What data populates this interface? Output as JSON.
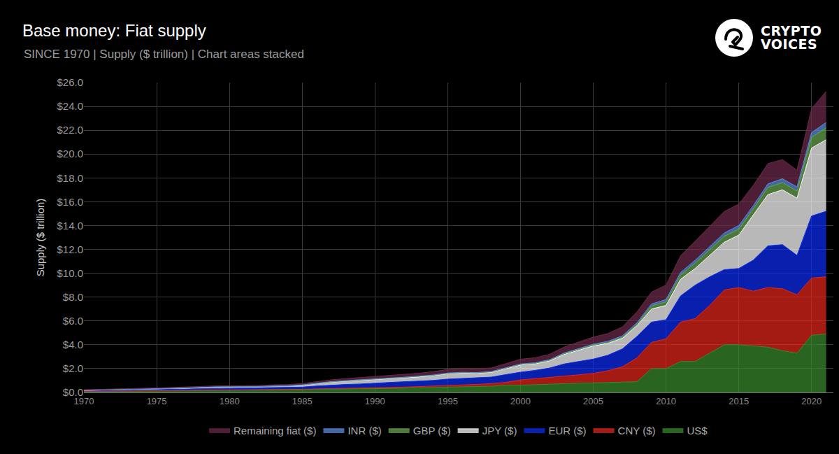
{
  "chart_data": {
    "type": "area",
    "title": "Base money: Fiat supply",
    "subtitle": "SINCE 1970 | Supply ($ trillion) | Chart areas stacked",
    "y_label": "Supply ($ trillion)",
    "logo": [
      "CRYPTO",
      "VOICES"
    ],
    "stacked": true,
    "grid": true,
    "legend": "bottom",
    "xlim": [
      1970,
      2021.5
    ],
    "xticks": [
      1970,
      1975,
      1980,
      1985,
      1990,
      1995,
      2000,
      2005,
      2010,
      2015,
      2020
    ],
    "ylim": [
      0,
      26
    ],
    "yticks": [
      {
        "value": 0,
        "label": "$0.0"
      },
      {
        "value": 2,
        "label": "$2.0"
      },
      {
        "value": 4,
        "label": "$4.0"
      },
      {
        "value": 6,
        "label": "$6.0"
      },
      {
        "value": 8,
        "label": "$8.0"
      },
      {
        "value": 10,
        "label": "$10.0"
      },
      {
        "value": 12,
        "label": "$12.0"
      },
      {
        "value": 14,
        "label": "$14.0"
      },
      {
        "value": 16,
        "label": "$16.0"
      },
      {
        "value": 18,
        "label": "$18.0"
      },
      {
        "value": 20,
        "label": "$20.0"
      },
      {
        "value": 22,
        "label": "$22.0"
      },
      {
        "value": 24,
        "label": "$24.0"
      },
      {
        "value": 26,
        "label": "$26.0"
      }
    ],
    "x": [
      1970,
      1971,
      1972,
      1973,
      1974,
      1975,
      1976,
      1977,
      1978,
      1979,
      1980,
      1981,
      1982,
      1983,
      1984,
      1985,
      1986,
      1987,
      1988,
      1989,
      1990,
      1991,
      1992,
      1993,
      1994,
      1995,
      1996,
      1997,
      1998,
      1999,
      2000,
      2001,
      2002,
      2003,
      2004,
      2005,
      2006,
      2007,
      2008,
      2009,
      2010,
      2011,
      2012,
      2013,
      2014,
      2015,
      2016,
      2017,
      2018,
      2019,
      2020,
      2021
    ],
    "series": [
      {
        "name": "US$",
        "color": "#3a8a2e",
        "values": [
          0.08,
          0.09,
          0.1,
          0.11,
          0.12,
          0.13,
          0.14,
          0.15,
          0.16,
          0.17,
          0.18,
          0.19,
          0.2,
          0.21,
          0.22,
          0.23,
          0.25,
          0.27,
          0.29,
          0.3,
          0.32,
          0.34,
          0.36,
          0.39,
          0.41,
          0.43,
          0.45,
          0.48,
          0.52,
          0.6,
          0.6,
          0.65,
          0.7,
          0.74,
          0.78,
          0.8,
          0.82,
          0.85,
          0.9,
          2.0,
          2.0,
          2.6,
          2.6,
          3.3,
          4.0,
          4.0,
          3.9,
          3.8,
          3.5,
          3.3,
          4.8,
          4.9
        ]
      },
      {
        "name": "CNY ($)",
        "color": "#e3261c",
        "values": [
          0.01,
          0.01,
          0.01,
          0.01,
          0.01,
          0.01,
          0.01,
          0.01,
          0.02,
          0.02,
          0.02,
          0.02,
          0.02,
          0.03,
          0.03,
          0.04,
          0.05,
          0.05,
          0.06,
          0.06,
          0.07,
          0.08,
          0.09,
          0.1,
          0.12,
          0.14,
          0.17,
          0.2,
          0.22,
          0.25,
          0.45,
          0.5,
          0.55,
          0.65,
          0.7,
          0.8,
          1.0,
          1.3,
          2.0,
          2.2,
          2.5,
          3.3,
          3.6,
          4.0,
          4.6,
          4.8,
          4.6,
          5.0,
          5.2,
          4.9,
          4.8,
          4.8
        ]
      },
      {
        "name": "EUR ($)",
        "color": "#0b2cf0",
        "values": [
          0.05,
          0.06,
          0.07,
          0.08,
          0.09,
          0.1,
          0.11,
          0.12,
          0.14,
          0.16,
          0.16,
          0.15,
          0.15,
          0.16,
          0.16,
          0.18,
          0.24,
          0.3,
          0.32,
          0.35,
          0.4,
          0.42,
          0.45,
          0.45,
          0.48,
          0.55,
          0.55,
          0.52,
          0.55,
          0.65,
          0.65,
          0.7,
          0.8,
          1.0,
          1.1,
          1.2,
          1.3,
          1.5,
          1.8,
          1.7,
          1.6,
          2.2,
          2.8,
          2.4,
          1.7,
          1.6,
          2.6,
          3.5,
          3.7,
          3.3,
          5.2,
          5.5
        ]
      },
      {
        "name": "JPY ($)",
        "color": "#ffffff",
        "values": [
          0.03,
          0.03,
          0.04,
          0.05,
          0.05,
          0.06,
          0.07,
          0.08,
          0.09,
          0.1,
          0.1,
          0.1,
          0.11,
          0.12,
          0.13,
          0.15,
          0.2,
          0.25,
          0.28,
          0.3,
          0.3,
          0.32,
          0.33,
          0.36,
          0.4,
          0.45,
          0.45,
          0.4,
          0.4,
          0.5,
          0.6,
          0.55,
          0.6,
          0.8,
          0.95,
          1.1,
          1.0,
          0.9,
          0.9,
          1.1,
          1.2,
          1.4,
          1.4,
          1.8,
          2.3,
          2.8,
          3.8,
          4.3,
          4.6,
          4.8,
          5.7,
          6.0
        ]
      },
      {
        "name": "GBP ($)",
        "color": "#6aa84f",
        "values": [
          0.01,
          0.01,
          0.01,
          0.01,
          0.01,
          0.01,
          0.01,
          0.01,
          0.01,
          0.01,
          0.01,
          0.01,
          0.01,
          0.01,
          0.01,
          0.02,
          0.02,
          0.02,
          0.02,
          0.02,
          0.03,
          0.03,
          0.03,
          0.03,
          0.03,
          0.03,
          0.04,
          0.04,
          0.04,
          0.04,
          0.05,
          0.05,
          0.05,
          0.06,
          0.06,
          0.07,
          0.07,
          0.08,
          0.1,
          0.25,
          0.3,
          0.35,
          0.45,
          0.5,
          0.5,
          0.5,
          0.5,
          0.6,
          0.6,
          0.6,
          0.9,
          1.0
        ]
      },
      {
        "name": "INR ($)",
        "color": "#5b8fe0",
        "values": [
          0.01,
          0.01,
          0.01,
          0.01,
          0.01,
          0.01,
          0.01,
          0.01,
          0.01,
          0.01,
          0.01,
          0.01,
          0.01,
          0.01,
          0.01,
          0.02,
          0.02,
          0.02,
          0.02,
          0.02,
          0.02,
          0.02,
          0.02,
          0.02,
          0.02,
          0.03,
          0.03,
          0.03,
          0.03,
          0.03,
          0.04,
          0.04,
          0.05,
          0.06,
          0.07,
          0.08,
          0.1,
          0.12,
          0.15,
          0.17,
          0.2,
          0.22,
          0.24,
          0.26,
          0.28,
          0.3,
          0.28,
          0.3,
          0.33,
          0.35,
          0.4,
          0.45
        ]
      },
      {
        "name": "Remaining fiat ($)",
        "color": "#6b2a4a",
        "values": [
          0.04,
          0.04,
          0.05,
          0.05,
          0.06,
          0.06,
          0.06,
          0.07,
          0.07,
          0.08,
          0.08,
          0.09,
          0.09,
          0.1,
          0.1,
          0.11,
          0.13,
          0.15,
          0.17,
          0.19,
          0.2,
          0.22,
          0.24,
          0.26,
          0.28,
          0.3,
          0.3,
          0.3,
          0.3,
          0.35,
          0.4,
          0.42,
          0.45,
          0.5,
          0.55,
          0.6,
          0.65,
          0.75,
          0.9,
          1.0,
          1.2,
          1.4,
          1.6,
          1.7,
          1.8,
          1.8,
          1.7,
          1.7,
          1.6,
          1.4,
          2.0,
          2.6
        ]
      }
    ]
  }
}
